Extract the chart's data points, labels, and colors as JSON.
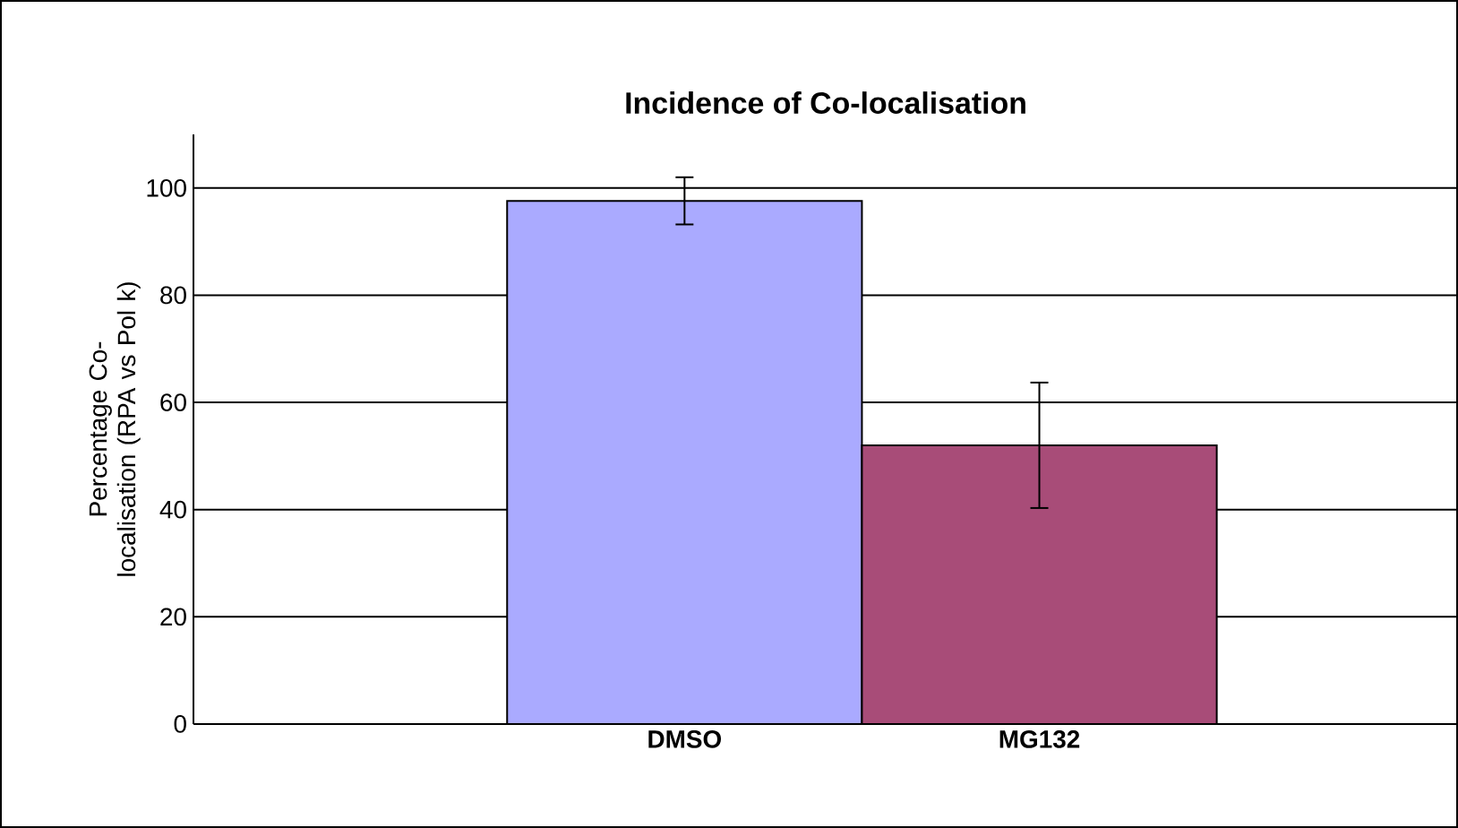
{
  "chart_data": {
    "type": "bar",
    "title": "Incidence of Co-localisation",
    "ylabel": "Percentage Co-localisation (RPA vs Pol k)",
    "categories": [
      "DMSO",
      "MG132"
    ],
    "values": [
      97.6,
      52.0
    ],
    "colors": [
      "#aaaaff",
      "#a84c78"
    ],
    "errors": [
      4.4,
      11.7
    ],
    "ylim": [
      0,
      110
    ],
    "yticks": [
      0,
      20,
      40,
      60,
      80,
      100
    ],
    "grid": "y"
  }
}
